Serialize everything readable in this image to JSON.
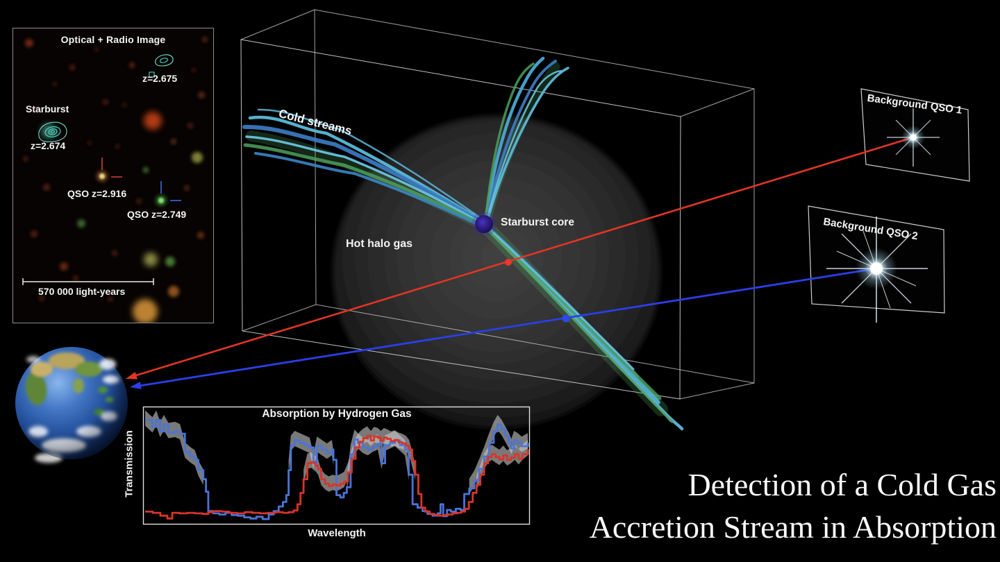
{
  "main_title": {
    "line1": "Detection of a Cold Gas",
    "line2": "Accretion Stream in Absorption"
  },
  "optical_panel": {
    "title": "Optical + Radio Image",
    "starburst_label": "Starburst",
    "starburst_redshift": "z=2.674",
    "radio_source_redshift": "z=2.675",
    "qso1_label": "QSO z=2.916",
    "qso2_label": "QSO z=2.749",
    "scale_label": "570 000 light-years"
  },
  "simulation_box": {
    "cold_streams_label": "Cold streams",
    "hot_halo_label": "Hot halo gas",
    "core_label": "Starburst core"
  },
  "qso_screens": {
    "qso1_label": "Background QSO 1",
    "qso2_label": "Background QSO 2"
  },
  "colors": {
    "sightline_red": "#e23524",
    "sightline_blue": "#2a3fe8",
    "spectrum_red": "#d9342a",
    "spectrum_blue": "#4a74d8",
    "error_band": "#c9c9c9",
    "radio_contour": "#46d8c8",
    "stream_cyan": "#5cb8d8",
    "stream_blue": "#3c7ec6",
    "stream_green": "#4d9f5d"
  },
  "chart_data": {
    "type": "line",
    "title": "Absorption by Hydrogen Gas",
    "xlabel": "Wavelength",
    "ylabel": "Transmission",
    "x_range": [
      0,
      1
    ],
    "y_range": [
      0,
      1
    ],
    "grid": false,
    "legend": false,
    "band": {
      "color": "#c9c9c9",
      "opacity": 0.6,
      "up": 0.085,
      "down": 0.05,
      "threshold": 0.3
    },
    "series": [
      {
        "id": "blue_qso2_sightline",
        "color": "#4a74d8",
        "points": [
          [
            0.0,
            0.9
          ],
          [
            0.019,
            0.84
          ],
          [
            0.029,
            0.9
          ],
          [
            0.039,
            0.8
          ],
          [
            0.049,
            0.86
          ],
          [
            0.061,
            0.79
          ],
          [
            0.078,
            0.8
          ],
          [
            0.091,
            0.78
          ],
          [
            0.104,
            0.62
          ],
          [
            0.117,
            0.58
          ],
          [
            0.13,
            0.55
          ],
          [
            0.139,
            0.46
          ],
          [
            0.152,
            0.38
          ],
          [
            0.159,
            0.27
          ],
          [
            0.165,
            0.1
          ],
          [
            0.178,
            0.08
          ],
          [
            0.194,
            0.07
          ],
          [
            0.21,
            0.085
          ],
          [
            0.226,
            0.065
          ],
          [
            0.242,
            0.06
          ],
          [
            0.259,
            0.045
          ],
          [
            0.275,
            0.035
          ],
          [
            0.291,
            0.05
          ],
          [
            0.307,
            0.03
          ],
          [
            0.323,
            0.07
          ],
          [
            0.336,
            0.1
          ],
          [
            0.349,
            0.14
          ],
          [
            0.36,
            0.18
          ],
          [
            0.369,
            0.24
          ],
          [
            0.375,
            0.46
          ],
          [
            0.381,
            0.68
          ],
          [
            0.391,
            0.72
          ],
          [
            0.404,
            0.7
          ],
          [
            0.417,
            0.68
          ],
          [
            0.43,
            0.66
          ],
          [
            0.44,
            0.52
          ],
          [
            0.449,
            0.67
          ],
          [
            0.462,
            0.64
          ],
          [
            0.475,
            0.61
          ],
          [
            0.488,
            0.64
          ],
          [
            0.492,
            0.55
          ],
          [
            0.5,
            0.24
          ],
          [
            0.51,
            0.22
          ],
          [
            0.519,
            0.26
          ],
          [
            0.527,
            0.31
          ],
          [
            0.537,
            0.6
          ],
          [
            0.547,
            0.73
          ],
          [
            0.556,
            0.7
          ],
          [
            0.569,
            0.66
          ],
          [
            0.582,
            0.64
          ],
          [
            0.595,
            0.67
          ],
          [
            0.608,
            0.69
          ],
          [
            0.618,
            0.52
          ],
          [
            0.627,
            0.68
          ],
          [
            0.64,
            0.7
          ],
          [
            0.653,
            0.72
          ],
          [
            0.666,
            0.68
          ],
          [
            0.679,
            0.64
          ],
          [
            0.689,
            0.42
          ],
          [
            0.699,
            0.16
          ],
          [
            0.712,
            0.13
          ],
          [
            0.725,
            0.1
          ],
          [
            0.738,
            0.075
          ],
          [
            0.751,
            0.06
          ],
          [
            0.764,
            0.08
          ],
          [
            0.772,
            0.16
          ],
          [
            0.779,
            0.055
          ],
          [
            0.789,
            0.11
          ],
          [
            0.799,
            0.095
          ],
          [
            0.812,
            0.12
          ],
          [
            0.824,
            0.11
          ],
          [
            0.834,
            0.25
          ],
          [
            0.847,
            0.3
          ],
          [
            0.86,
            0.37
          ],
          [
            0.873,
            0.47
          ],
          [
            0.886,
            0.58
          ],
          [
            0.899,
            0.7
          ],
          [
            0.911,
            0.8
          ],
          [
            0.921,
            0.86
          ],
          [
            0.931,
            0.82
          ],
          [
            0.941,
            0.76
          ],
          [
            0.951,
            0.7
          ],
          [
            0.957,
            0.65
          ],
          [
            0.964,
            0.72
          ],
          [
            0.974,
            0.7
          ],
          [
            0.984,
            0.67
          ],
          [
            1.0,
            0.7
          ]
        ]
      },
      {
        "id": "red_qso1_sightline",
        "color": "#d9342a",
        "points": [
          [
            0.0,
            0.095
          ],
          [
            0.02,
            0.085
          ],
          [
            0.04,
            0.06
          ],
          [
            0.058,
            0.035
          ],
          [
            0.071,
            0.085
          ],
          [
            0.09,
            0.08
          ],
          [
            0.11,
            0.085
          ],
          [
            0.13,
            0.08
          ],
          [
            0.15,
            0.075
          ],
          [
            0.165,
            0.09
          ],
          [
            0.18,
            0.1
          ],
          [
            0.2,
            0.095
          ],
          [
            0.22,
            0.085
          ],
          [
            0.24,
            0.08
          ],
          [
            0.26,
            0.09
          ],
          [
            0.28,
            0.085
          ],
          [
            0.3,
            0.08
          ],
          [
            0.32,
            0.085
          ],
          [
            0.34,
            0.09
          ],
          [
            0.36,
            0.085
          ],
          [
            0.375,
            0.09
          ],
          [
            0.388,
            0.105
          ],
          [
            0.398,
            0.16
          ],
          [
            0.406,
            0.26
          ],
          [
            0.414,
            0.38
          ],
          [
            0.424,
            0.52
          ],
          [
            0.434,
            0.53
          ],
          [
            0.445,
            0.5
          ],
          [
            0.452,
            0.47
          ],
          [
            0.46,
            0.38
          ],
          [
            0.47,
            0.34
          ],
          [
            0.48,
            0.32
          ],
          [
            0.49,
            0.335
          ],
          [
            0.5,
            0.325
          ],
          [
            0.51,
            0.34
          ],
          [
            0.52,
            0.36
          ],
          [
            0.53,
            0.44
          ],
          [
            0.54,
            0.56
          ],
          [
            0.55,
            0.66
          ],
          [
            0.56,
            0.71
          ],
          [
            0.57,
            0.74
          ],
          [
            0.58,
            0.76
          ],
          [
            0.59,
            0.72
          ],
          [
            0.598,
            0.755
          ],
          [
            0.608,
            0.745
          ],
          [
            0.616,
            0.72
          ],
          [
            0.624,
            0.745
          ],
          [
            0.632,
            0.735
          ],
          [
            0.642,
            0.715
          ],
          [
            0.652,
            0.725
          ],
          [
            0.662,
            0.705
          ],
          [
            0.672,
            0.695
          ],
          [
            0.682,
            0.675
          ],
          [
            0.69,
            0.64
          ],
          [
            0.698,
            0.54
          ],
          [
            0.706,
            0.42
          ],
          [
            0.714,
            0.25
          ],
          [
            0.722,
            0.13
          ],
          [
            0.732,
            0.095
          ],
          [
            0.744,
            0.075
          ],
          [
            0.756,
            0.065
          ],
          [
            0.768,
            0.06
          ],
          [
            0.78,
            0.065
          ],
          [
            0.792,
            0.07
          ],
          [
            0.804,
            0.08
          ],
          [
            0.816,
            0.085
          ],
          [
            0.826,
            0.095
          ],
          [
            0.836,
            0.12
          ],
          [
            0.846,
            0.18
          ],
          [
            0.856,
            0.26
          ],
          [
            0.866,
            0.33
          ],
          [
            0.876,
            0.42
          ],
          [
            0.886,
            0.52
          ],
          [
            0.896,
            0.575
          ],
          [
            0.906,
            0.6
          ],
          [
            0.916,
            0.575
          ],
          [
            0.926,
            0.555
          ],
          [
            0.936,
            0.59
          ],
          [
            0.946,
            0.55
          ],
          [
            0.956,
            0.57
          ],
          [
            0.966,
            0.6
          ],
          [
            0.976,
            0.56
          ],
          [
            0.986,
            0.6
          ],
          [
            1.0,
            0.64
          ]
        ]
      }
    ]
  }
}
